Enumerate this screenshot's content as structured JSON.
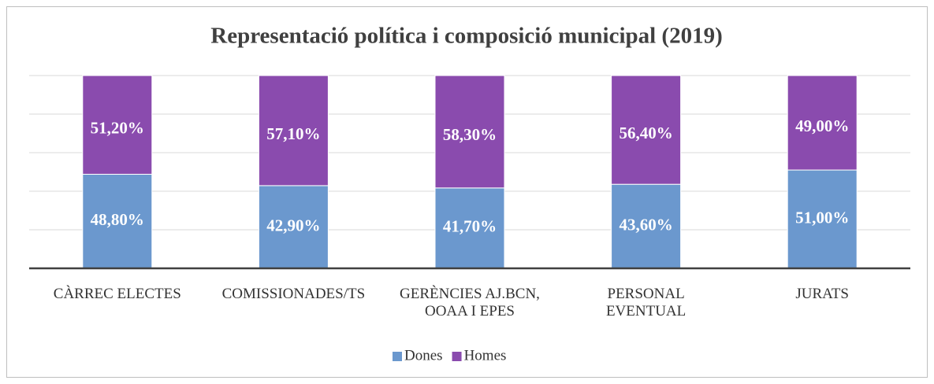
{
  "chart_data": {
    "type": "stacked_bar",
    "title": "Representació política i composició municipal (2019)",
    "categories": [
      "CÀRREC ELECTES",
      "COMISSIONADES/TS",
      "GERÈNCIES AJ.BCN,\nOOAA I EPES",
      "PERSONAL\nEVENTUAL",
      "JURATS"
    ],
    "series": [
      {
        "name": "Dones",
        "color": "#6b98ce",
        "values": [
          48.8,
          42.9,
          41.7,
          43.6,
          51.0
        ],
        "value_labels": [
          "48,80%",
          "42,90%",
          "41,70%",
          "43,60%",
          "51,00%"
        ]
      },
      {
        "name": "Homes",
        "color": "#8a4bae",
        "values": [
          51.2,
          57.1,
          58.3,
          56.4,
          49.0
        ],
        "value_labels": [
          "51,20%",
          "57,10%",
          "58,30%",
          "56,40%",
          "49,00%"
        ]
      }
    ],
    "ylim": [
      0,
      100
    ],
    "yticks": [
      0,
      20,
      40,
      60,
      80,
      100
    ],
    "grid": true,
    "legend": "bottom"
  }
}
